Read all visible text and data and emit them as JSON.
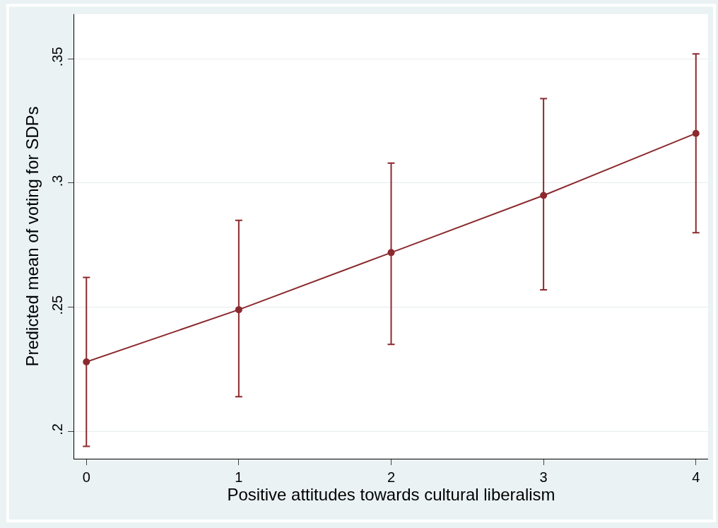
{
  "chart_data": {
    "type": "line",
    "xlabel": "Positive attitudes towards cultural liberalism",
    "ylabel": "Predicted mean of voting for SDPs",
    "x": [
      0,
      1,
      2,
      3,
      4
    ],
    "series": [
      {
        "color": "#8b2a2e",
        "values": [
          0.228,
          0.249,
          0.272,
          0.295,
          0.32
        ],
        "errors": [
          [
            0.194,
            0.262
          ],
          [
            0.214,
            0.285
          ],
          [
            0.235,
            0.308
          ],
          [
            0.257,
            0.334
          ],
          [
            0.28,
            0.352
          ]
        ]
      }
    ],
    "xlim": [
      -0.08,
      4.08
    ],
    "xticks": [
      0,
      1,
      2,
      3,
      4
    ],
    "ylim": [
      0.189,
      0.368
    ],
    "yticks": [
      {
        "value": 0.2,
        "label": ".2"
      },
      {
        "value": 0.25,
        "label": ".25"
      },
      {
        "value": 0.3,
        "label": ".3"
      },
      {
        "value": 0.35,
        "label": ".35"
      }
    ],
    "grid": "y",
    "marker": "circle",
    "line_style": "solid"
  }
}
